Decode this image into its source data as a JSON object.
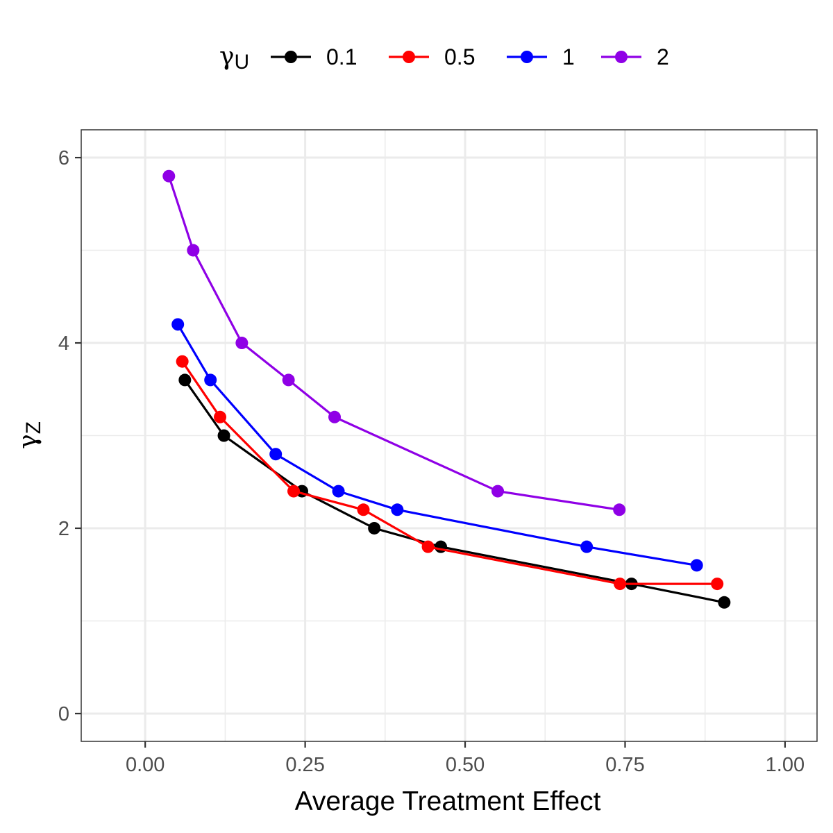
{
  "chart_data": {
    "type": "line",
    "title": "",
    "xlabel": "Average Treatment Effect",
    "ylabel": "γZ",
    "ylabel_main": "γ",
    "ylabel_sub": "Z",
    "xlim": [
      -0.1,
      1.05
    ],
    "ylim": [
      -0.3,
      6.3
    ],
    "x_ticks": [
      0.0,
      0.25,
      0.5,
      0.75,
      1.0
    ],
    "x_tick_labels": [
      "0.00",
      "0.25",
      "0.50",
      "0.75",
      "1.00"
    ],
    "y_ticks": [
      0,
      2,
      4,
      6
    ],
    "y_tick_labels": [
      "0",
      "2",
      "4",
      "6"
    ],
    "grid": true,
    "legend": {
      "position": "top",
      "title": "γU",
      "title_main": "γ",
      "title_sub": "U"
    },
    "series": [
      {
        "name": "0.1",
        "color": "#000000",
        "x": [
          0.062,
          0.123,
          0.245,
          0.358,
          0.462,
          0.76,
          0.905
        ],
        "y": [
          3.6,
          3.0,
          2.4,
          2.0,
          1.8,
          1.4,
          1.2
        ]
      },
      {
        "name": "0.5",
        "color": "#ff0000",
        "x": [
          0.058,
          0.117,
          0.232,
          0.341,
          0.442,
          0.742,
          0.894
        ],
        "y": [
          3.8,
          3.2,
          2.4,
          2.2,
          1.8,
          1.4,
          1.4
        ]
      },
      {
        "name": "1",
        "color": "#0000ff",
        "x": [
          0.051,
          0.102,
          0.204,
          0.302,
          0.394,
          0.69,
          0.862
        ],
        "y": [
          4.2,
          3.6,
          2.8,
          2.4,
          2.2,
          1.8,
          1.6
        ]
      },
      {
        "name": "2",
        "color": "#8f00e6",
        "x": [
          0.037,
          0.075,
          0.151,
          0.224,
          0.296,
          0.551,
          0.741
        ],
        "y": [
          5.8,
          5.0,
          4.0,
          3.6,
          3.2,
          2.4,
          2.2
        ]
      }
    ]
  }
}
